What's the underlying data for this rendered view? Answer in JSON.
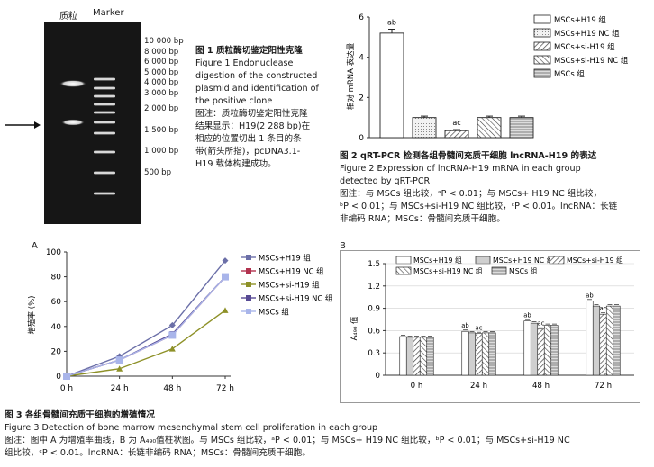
{
  "figure1": {
    "lane_labels": [
      "质粒",
      "Marker"
    ],
    "ladder_labels": [
      "10 000 bp",
      "8 000 bp",
      "6 000 bp",
      "5 000 bp",
      "4 000 bp",
      "3 000 bp",
      "2 000 bp",
      "1 500 bp",
      "1 000 bp",
      "500 bp"
    ],
    "caption_lines": [
      "图 1   质粒酶切鉴定阳性克隆",
      "Figure 1    Endonuclease",
      "digestion of the constructed",
      "plasmid and identification of",
      "the positive clone",
      "图注：质粒酶切鉴定阳性克隆",
      "结果显示：H19(2 288 bp)在",
      "相应的位置切出 1 条目的条",
      "带(箭头所指)，pcDNA3.1-",
      "H19 载体构建成功。"
    ]
  },
  "figure2": {
    "caption_lines": [
      "图 2    qRT-PCR  检测各组骨髓间充质干细胞 lncRNA-H19 的表达",
      "Figure 2    Expression of lncRNA-H19 mRNA in each group",
      "detected by qRT-PCR",
      "图注：与 MSCs  组比较，ᵃP < 0.01；与 MSCs+ H19 NC 组比较，",
      "ᵇP < 0.01；与 MSCs+si-H19 NC 组比较，ᶜP < 0.01。lncRNA：长链",
      "非编码 RNA；MSCs：骨髓间充质干细胞。"
    ]
  },
  "figure3": {
    "panel_a_label": "A",
    "panel_b_label": "B",
    "caption_lines": [
      "图 3   各组骨髓间充质干细胞的增殖情况",
      "Figure 3    Detection of bone marrow mesenchymal stem cell proliferation in each group",
      "图注：图中 A 为增殖率曲线，B 为 A₄₉₀值柱状图。与 MSCs  组比较，ᵃP < 0.01；与 MSCs+ H19 NC 组比较，ᵇP < 0.01；与 MSCs+si-H19 NC",
      "组比较，ᶜP < 0.01。lncRNA：长链非编码 RNA；MSCs：骨髓间充质干细胞。"
    ]
  },
  "chart_data": [
    {
      "type": "bar",
      "panel": "Figure 2",
      "ylabel": "相对 mRNA 表达量",
      "ylim": [
        0,
        6
      ],
      "yticks": [
        0,
        2,
        4,
        6
      ],
      "categories": [
        "MSCs+H19 组",
        "MSCs+H19 NC 组",
        "MSCs+si-H19 组",
        "MSCs+si-H19 NC 组",
        "MSCs 组"
      ],
      "values": [
        5.2,
        1.0,
        0.35,
        1.0,
        1.0
      ],
      "annotations": [
        "ab",
        "",
        "ac",
        "",
        ""
      ],
      "legend": "top-right",
      "grid": false
    },
    {
      "type": "line",
      "panel": "Figure 3A",
      "ylabel": "增殖率 (%)",
      "ylim": [
        0,
        100
      ],
      "yticks": [
        0,
        20,
        40,
        60,
        80,
        100
      ],
      "x": [
        "0 h",
        "24 h",
        "48 h",
        "72 h"
      ],
      "series": [
        {
          "name": "MSCs+H19 组",
          "values": [
            0,
            16,
            41,
            93
          ],
          "color": "#6b6fa8"
        },
        {
          "name": "MSCs+H19 NC 组",
          "values": [
            0,
            13,
            33,
            80
          ],
          "color": "#b2334f"
        },
        {
          "name": "MSCs+si-H19 组",
          "values": [
            0,
            6,
            22,
            53
          ],
          "color": "#8e9128"
        },
        {
          "name": "MSCs+si-H19 NC 组",
          "values": [
            0,
            13,
            34,
            80
          ],
          "color": "#574a94"
        },
        {
          "name": "MSCs 组",
          "values": [
            0,
            13,
            33,
            80
          ],
          "color": "#a9b5ea"
        }
      ],
      "legend": "top-left",
      "grid": false
    },
    {
      "type": "bar",
      "panel": "Figure 3B",
      "ylabel": "A₄₉₀ 值",
      "ylim": [
        0,
        1.5
      ],
      "yticks": [
        0,
        0.3,
        0.6,
        0.9,
        1.2,
        1.5
      ],
      "categories": [
        "0 h",
        "24 h",
        "48 h",
        "72 h"
      ],
      "series": [
        {
          "name": "MSCs+H19 组",
          "values": [
            0.52,
            0.59,
            0.73,
            1.0
          ]
        },
        {
          "name": "MSCs+H19 NC 组",
          "values": [
            0.51,
            0.57,
            0.7,
            0.93
          ]
        },
        {
          "name": "MSCs+si-H19 组",
          "values": [
            0.51,
            0.56,
            0.62,
            0.82
          ]
        },
        {
          "name": "MSCs+si-H19 NC 组",
          "values": [
            0.51,
            0.57,
            0.67,
            0.93
          ]
        },
        {
          "name": "MSCs 组",
          "values": [
            0.51,
            0.57,
            0.67,
            0.93
          ]
        }
      ],
      "annotations": [
        {
          "category": "24 h",
          "series": 0,
          "text": "ab"
        },
        {
          "category": "24 h",
          "series": 2,
          "text": "ac"
        },
        {
          "category": "48 h",
          "series": 0,
          "text": "ab"
        },
        {
          "category": "48 h",
          "series": 2,
          "text": "ac"
        },
        {
          "category": "72 h",
          "series": 0,
          "text": "ab"
        },
        {
          "category": "72 h",
          "series": 2,
          "text": "ac"
        }
      ],
      "legend": "top",
      "grid": true
    }
  ]
}
